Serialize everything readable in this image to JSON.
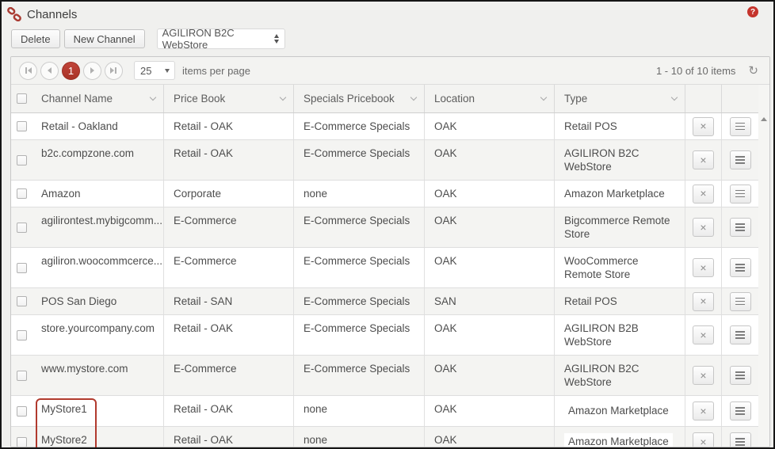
{
  "colors": {
    "accent_red": "#b5362c",
    "annotation_red": "#b13a2e",
    "page_bg": "#f0f0ee",
    "row_alt_bg": "#f4f4f2"
  },
  "header": {
    "title": "Channels",
    "help_label": "?"
  },
  "icons": {
    "channels": "chain-links",
    "help": "question-mark-circle",
    "refresh": "clockwise-arrow",
    "sort": "chevron-down",
    "row_remove": "x-cross",
    "row_menu": "hamburger-lines",
    "select_spinner": "up-down-arrows"
  },
  "toolbar": {
    "delete_label": "Delete",
    "new_channel_label": "New Channel",
    "selected_channel_type": "AGILIRON B2C WebStore"
  },
  "pager": {
    "page_number": "1",
    "page_size": "25",
    "items_per_page_label": "items per page",
    "range_text": "1 - 10 of 10 items"
  },
  "table": {
    "columns": [
      {
        "label": "Channel Name"
      },
      {
        "label": "Price Book"
      },
      {
        "label": "Specials Pricebook"
      },
      {
        "label": "Location"
      },
      {
        "label": "Type"
      }
    ],
    "action_close_label": "×",
    "rows": [
      {
        "channel_name": "Retail - Oakland",
        "price_book": "Retail - OAK",
        "specials_pricebook": "E-Commerce Specials",
        "location": "OAK",
        "type": "Retail POS",
        "annotated": false,
        "type_boxed": false
      },
      {
        "channel_name": "b2c.compzone.com",
        "price_book": "Retail - OAK",
        "specials_pricebook": "E-Commerce Specials",
        "location": "OAK",
        "type": "AGILIRON B2C WebStore",
        "annotated": false,
        "type_boxed": false
      },
      {
        "channel_name": "Amazon",
        "price_book": "Corporate",
        "specials_pricebook": "none",
        "location": "OAK",
        "type": "Amazon Marketplace",
        "annotated": false,
        "type_boxed": false
      },
      {
        "channel_name": "agilirontest.mybigcomm...",
        "price_book": "E-Commerce",
        "specials_pricebook": "E-Commerce Specials",
        "location": "OAK",
        "type": "Bigcommerce Remote Store",
        "annotated": false,
        "type_boxed": false
      },
      {
        "channel_name": "agiliron.woocommcerce...",
        "price_book": "E-Commerce",
        "specials_pricebook": "E-Commerce Specials",
        "location": "OAK",
        "type": "WooCommerce Remote Store",
        "annotated": false,
        "type_boxed": false
      },
      {
        "channel_name": "POS San Diego",
        "price_book": "Retail - SAN",
        "specials_pricebook": "E-Commerce Specials",
        "location": "SAN",
        "type": "Retail POS",
        "annotated": false,
        "type_boxed": false
      },
      {
        "channel_name": "store.yourcompany.com",
        "price_book": "Retail - OAK",
        "specials_pricebook": "E-Commerce Specials",
        "location": "OAK",
        "type": "AGILIRON B2B WebStore",
        "annotated": false,
        "type_boxed": false
      },
      {
        "channel_name": "www.mystore.com",
        "price_book": "E-Commerce",
        "specials_pricebook": "E-Commerce Specials",
        "location": "OAK",
        "type": "AGILIRON B2C WebStore",
        "annotated": false,
        "type_boxed": false
      },
      {
        "channel_name": "MyStore1",
        "price_book": "Retail - OAK",
        "specials_pricebook": "none",
        "location": "OAK",
        "type": "Amazon Marketplace",
        "annotated": true,
        "type_boxed": true
      },
      {
        "channel_name": "MyStore2",
        "price_book": "Retail - OAK",
        "specials_pricebook": "none",
        "location": "OAK",
        "type": "Amazon Marketplace",
        "annotated": true,
        "type_boxed": true
      }
    ]
  }
}
